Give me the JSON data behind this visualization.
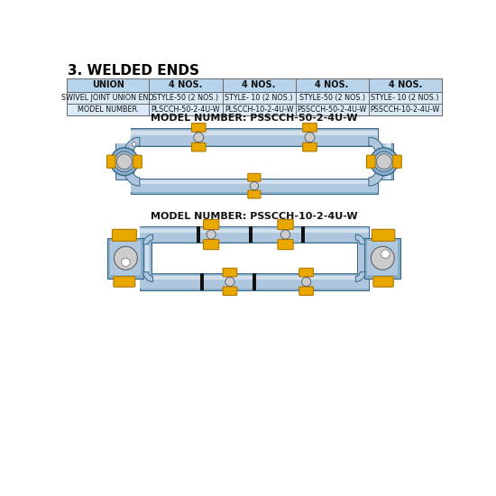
{
  "title": "3. WELDED ENDS",
  "table": {
    "header": [
      "UNION",
      "4 NOS.",
      "4 NOS.",
      "4 NOS.",
      "4 NOS."
    ],
    "row1": [
      "SWIVEL JOINT UNION END",
      "STYLE-50 (2 NOS.)",
      "STYLE- 10 (2 NOS.)",
      "STYLE-50 (2 NOS.)",
      "STYLE- 10 (2 NOS.)"
    ],
    "row2": [
      "MODEL NUMBER.",
      "PLSCCH-50-2-4U-W",
      "PLSCCH-10-2-4U-W",
      "PSSCCH-50-2-4U-W",
      "PSSCCH-10-2-4U-W"
    ],
    "header_bg": "#b8d4ea",
    "row_bg": "#daeaf8",
    "border_color": "#666666"
  },
  "model1_label": "MODEL NUMBER: PSSCCH-50-2-4U-W",
  "model2_label": "MODEL NUMBER: PSSCCH-10-2-4U-W",
  "blue_light": "#aec6de",
  "blue_mid": "#8aaec8",
  "blue_dark": "#6090b8",
  "gold": "#e8a800",
  "gold_dark": "#b07800",
  "gray_light": "#cccccc",
  "gray_dark": "#888888",
  "black": "#111111",
  "white": "#ffffff",
  "bg_color": "#ffffff"
}
